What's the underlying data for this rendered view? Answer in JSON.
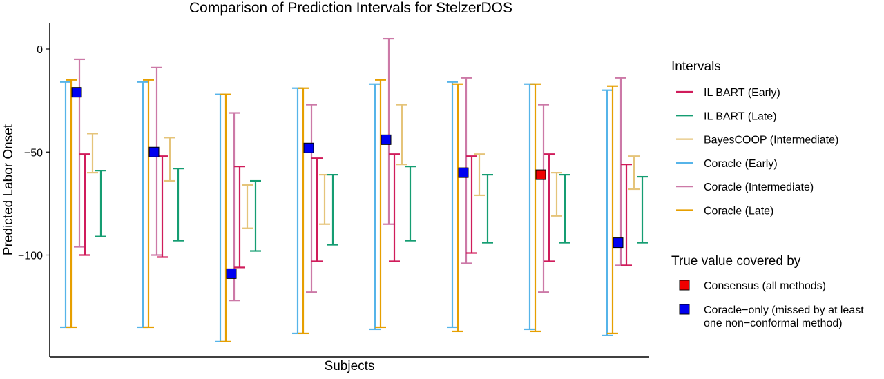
{
  "chart_data": {
    "type": "errorbar",
    "title": "Comparison of Prediction Intervals for StelzerDOS",
    "xlabel": "Subjects",
    "ylabel": "Predicted Labor Onset",
    "ylim": [
      -143,
      12
    ],
    "yticks": [
      0,
      -50,
      -100
    ],
    "ytick_labels": [
      "0",
      "−50",
      "−100"
    ],
    "grid": false,
    "legend_placement": "right",
    "subjects": 8,
    "series": [
      {
        "name": "Coracle (Early)",
        "color": "#56B4E9",
        "intervals": [
          [
            -135,
            -16
          ],
          [
            -135,
            -16
          ],
          [
            -142,
            -22
          ],
          [
            -138,
            -19
          ],
          [
            -136,
            -17
          ],
          [
            -135,
            -16
          ],
          [
            -136,
            -17
          ],
          [
            -139,
            -20
          ]
        ]
      },
      {
        "name": "Coracle (Late)",
        "color": "#E69F00",
        "intervals": [
          [
            -135,
            -15
          ],
          [
            -135,
            -15
          ],
          [
            -142,
            -22
          ],
          [
            -138,
            -19
          ],
          [
            -135,
            -15
          ],
          [
            -137,
            -17
          ],
          [
            -137,
            -17
          ],
          [
            -138,
            -18
          ]
        ]
      },
      {
        "name": "Coracle (Intermediate)",
        "color": "#CC79A7",
        "intervals": [
          [
            -96,
            -5
          ],
          [
            -100,
            -9
          ],
          [
            -122,
            -31
          ],
          [
            -118,
            -27
          ],
          [
            -85,
            5
          ],
          [
            -104,
            -14
          ],
          [
            -118,
            -27
          ],
          [
            -105,
            -14
          ]
        ]
      },
      {
        "name": "IL BART (Early)",
        "color": "#D01C5B",
        "intervals": [
          [
            -100,
            -51
          ],
          [
            -101,
            -52
          ],
          [
            -106,
            -57
          ],
          [
            -103,
            -53
          ],
          [
            -103,
            -51
          ],
          [
            -99,
            -52
          ],
          [
            -103,
            -51
          ],
          [
            -105,
            -56
          ]
        ]
      },
      {
        "name": "BayesCOOP (Intermediate)",
        "color": "#E5C47A",
        "intervals": [
          [
            -60,
            -41
          ],
          [
            -64,
            -43
          ],
          [
            -87,
            -66
          ],
          [
            -85,
            -61
          ],
          [
            -56,
            -27
          ],
          [
            -71,
            -51
          ],
          [
            -81,
            -60
          ],
          [
            -68,
            -52
          ]
        ]
      },
      {
        "name": "IL BART (Late)",
        "color": "#159D72",
        "intervals": [
          [
            -91,
            -59
          ],
          [
            -93,
            -58
          ],
          [
            -98,
            -64
          ],
          [
            -95,
            -61
          ],
          [
            -93,
            -57
          ],
          [
            -94,
            -61
          ],
          [
            -94,
            -61
          ],
          [
            -94,
            -62
          ]
        ]
      }
    ],
    "true_values": [
      {
        "value": -21,
        "covered_by": "Coracle−only (missed by at least one non−conformal method)"
      },
      {
        "value": -50,
        "covered_by": "Coracle−only (missed by at least one non−conformal method)"
      },
      {
        "value": -109,
        "covered_by": "Coracle−only (missed by at least one non−conformal method)"
      },
      {
        "value": -48,
        "covered_by": "Coracle−only (missed by at least one non−conformal method)"
      },
      {
        "value": -44,
        "covered_by": "Coracle−only (missed by at least one non−conformal method)"
      },
      {
        "value": -60,
        "covered_by": "Coracle−only (missed by at least one non−conformal method)"
      },
      {
        "value": -61,
        "covered_by": "Consensus (all methods)"
      },
      {
        "value": -94,
        "covered_by": "Coracle−only (missed by at least one non−conformal method)"
      }
    ],
    "legends": {
      "intervals": {
        "title": "Intervals",
        "entries": [
          {
            "label": "IL BART (Early)",
            "color": "#D01C5B"
          },
          {
            "label": "IL BART (Late)",
            "color": "#159D72"
          },
          {
            "label": "BayesCOOP (Intermediate)",
            "color": "#E5C47A"
          },
          {
            "label": "Coracle (Early)",
            "color": "#56B4E9"
          },
          {
            "label": "Coracle (Intermediate)",
            "color": "#CC79A7"
          },
          {
            "label": "Coracle (Late)",
            "color": "#E69F00"
          }
        ]
      },
      "coverage": {
        "title": "True value covered by",
        "entries": [
          {
            "label_lines": [
              "Consensus (all methods)"
            ],
            "color": "#F00000"
          },
          {
            "label_lines": [
              "Coracle−only (missed by at least",
              "one non−conformal method)"
            ],
            "color": "#0000F0"
          }
        ]
      }
    }
  }
}
